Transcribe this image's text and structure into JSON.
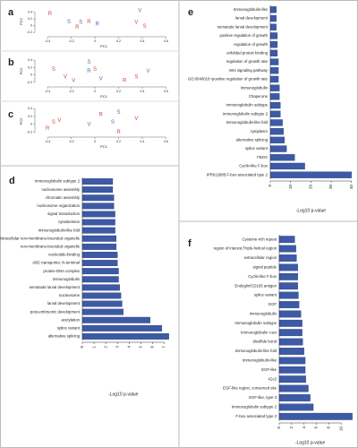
{
  "chart_data": [
    {
      "type": "scatter",
      "panel": "a",
      "xlabel": "PC1",
      "ylabel": "PC2",
      "xlim": [
        -0.5,
        0.65
      ],
      "xticks": [
        -0.4,
        -0.2,
        0,
        0.2,
        0.4,
        0.6
      ],
      "ylim": [
        -0.3,
        0.55
      ],
      "yticks": [
        -0.2,
        0,
        0.2,
        0.4
      ],
      "points": {
        "x": [
          -0.38,
          -0.22,
          -0.12,
          -0.05,
          0.02,
          0.38,
          0.35,
          0.42,
          -0.15
        ],
        "y": [
          0.35,
          0.12,
          0.1,
          0.12,
          0.05,
          0.45,
          0.1,
          -0.02,
          -0.05
        ],
        "labels": [
          "R",
          "S",
          "S",
          "R",
          "R",
          "V",
          "V",
          "S",
          "R"
        ],
        "colors": [
          "#d0474a",
          "#4a6fb5",
          "#4a6fb5",
          "#d0474a",
          "#4a6fb5",
          "#8e5a9e",
          "#d0474a",
          "#d0474a",
          "#d0474a"
        ]
      }
    },
    {
      "type": "scatter",
      "panel": "b",
      "xlabel": "PC1",
      "ylabel": "PC2",
      "xlim": [
        -0.5,
        0.65
      ],
      "xticks": [
        -0.4,
        -0.2,
        0,
        0.2,
        0.4,
        0.6
      ],
      "ylim": [
        -0.3,
        0.5
      ],
      "yticks": [
        -0.2,
        0,
        0.2,
        0.4
      ],
      "points": {
        "x": [
          -0.35,
          -0.25,
          -0.18,
          -0.05,
          -0.05,
          0.0,
          0.05,
          0.25,
          0.45,
          0.35
        ],
        "y": [
          0.15,
          -0.05,
          -0.15,
          0.35,
          0.1,
          0.15,
          -0.1,
          -0.15,
          0.1,
          -0.05
        ],
        "labels": [
          "S",
          "V",
          "V",
          "S",
          "R",
          "S",
          "V",
          "R",
          "V",
          "S"
        ],
        "colors": [
          "#d0474a",
          "#d0474a",
          "#d0474a",
          "#8e5a9e",
          "#4a6fb5",
          "#d0474a",
          "#4a6fb5",
          "#d0474a",
          "#8e5a9e",
          "#d0474a"
        ]
      }
    },
    {
      "type": "scatter",
      "panel": "c",
      "xlabel": "PC1",
      "ylabel": "PC2",
      "xlim": [
        -0.5,
        0.65
      ],
      "xticks": [
        -0.4,
        -0.2,
        0,
        0.2,
        0.4,
        0.6
      ],
      "ylim": [
        -0.3,
        0.45
      ],
      "yticks": [
        -0.2,
        0,
        0.2,
        0.4
      ],
      "points": {
        "x": [
          -0.4,
          -0.35,
          -0.3,
          0.05,
          -0.05,
          0.2,
          0.2,
          0.35,
          0.15
        ],
        "y": [
          -0.1,
          0.05,
          0.1,
          0.25,
          0.0,
          -0.2,
          0.3,
          0.15,
          0.05
        ],
        "labels": [
          "R",
          "S",
          "V",
          "R",
          "V",
          "R",
          "S",
          "V",
          "S"
        ],
        "colors": [
          "#d0474a",
          "#d0474a",
          "#d0474a",
          "#d0474a",
          "#8e5a9e",
          "#d0474a",
          "#8e5a9e",
          "#d0474a",
          "#4a6fb5"
        ]
      }
    },
    {
      "type": "barh",
      "panel": "d",
      "xlabel": "-Log10 p-value",
      "color": "#3d5aa6",
      "categories": [
        "Immunoglobulin subtype 2",
        "nucleosome assembly",
        "chromatin assembly",
        "nucleosome organization",
        "signal transduction",
        "cytoskeleton",
        "Immunoglobulin-like fold",
        "intracellular non-membrane-bounded organelle",
        "non-membrane-bounded organelle",
        "nucleotide-binding",
        "ABC transporter, N-terminal",
        "protein-DNA complex",
        "Immunoglobulin",
        "nematode larval development",
        "nucleosome",
        "larval development",
        "post-embryonic development",
        "acetylation",
        "splice variant",
        "alternative splicing"
      ],
      "values": [
        2.6,
        2.6,
        2.7,
        2.7,
        2.8,
        2.8,
        2.8,
        2.9,
        2.9,
        3.0,
        3.0,
        3.1,
        3.1,
        3.2,
        3.3,
        3.4,
        3.5,
        5.8,
        6.8,
        7.4
      ],
      "xlim": [
        0,
        7.5
      ],
      "xticks": [
        0,
        1,
        2,
        3,
        4,
        5,
        6,
        7
      ]
    },
    {
      "type": "barh",
      "panel": "e",
      "xlabel": "-Log10 p-value",
      "color": "#3d5aa6",
      "categories": [
        "Immunoglobulin-like",
        "larval development",
        "nematode larval development",
        "positive regulation of growth",
        "regulation of growth",
        "unfolded protein binding",
        "regulation of growth rate",
        "Wnt signaling pathway",
        "GO:0040010~positive regulation of growth rate",
        "Immunoglobulin",
        "Chaperone",
        "Immunoglobulin subtype",
        "Immunoglobulin subtype 2",
        "Immunoglobulin-like fold",
        "cytoplasm",
        "alternative splicing",
        "splice variant",
        "FBOX",
        "Cyclin-like F-box",
        "IPR012885:F-box associated type 2"
      ],
      "values": [
        3,
        3,
        3,
        3.5,
        3.5,
        3.5,
        4,
        4,
        4,
        4.5,
        4.5,
        5,
        5,
        6,
        6.5,
        7,
        8,
        12,
        17,
        40
      ],
      "xlim": [
        0,
        41
      ],
      "xticks": [
        0,
        10,
        20,
        30,
        40
      ]
    },
    {
      "type": "barh",
      "panel": "f",
      "xlabel": "-Log10 p-value",
      "color": "#3d5aa6",
      "categories": [
        "Cysteine-rich repeat",
        "region of interest:Triple-helical region",
        "extracellular region",
        "signal peptide",
        "Cyclin-like F-box",
        "Endoglin/CD105 antigen",
        "splice variant",
        "EGF",
        "Immunoglobulin",
        "Immunoglobulin subtype",
        "Immunoglobulin I-set",
        "disulfide bond",
        "Immunoglobulin-like fold",
        "Immunoglobulin-like",
        "EGF-like",
        "IGc2",
        "EGF-like region, conserved site",
        "EGF-like, type 3",
        "Immunoglobulin subtype 2",
        "F-box associated type 2"
      ],
      "values": [
        2.5,
        2.7,
        2.8,
        3,
        3,
        3,
        3.1,
        3.2,
        3.5,
        3.7,
        3.7,
        3.8,
        4,
        4.2,
        4.2,
        4.3,
        4.7,
        5,
        5.5,
        11.8
      ],
      "xlim": [
        0,
        12
      ],
      "xticks": [
        0,
        2,
        4,
        6,
        8,
        10
      ]
    }
  ]
}
